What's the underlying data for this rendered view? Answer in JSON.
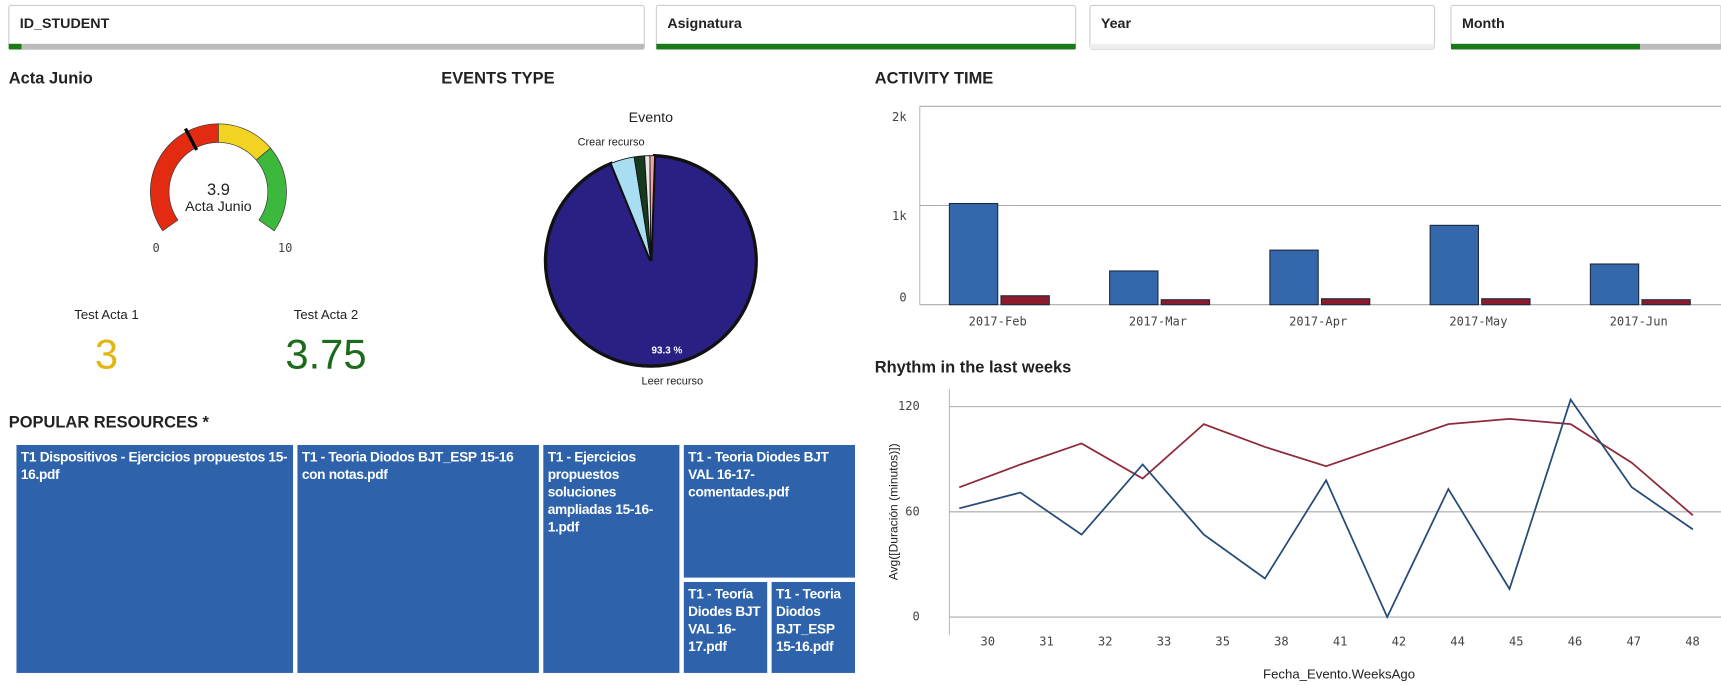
{
  "filters": [
    "ID_STUDENT",
    "Asignatura",
    "Year",
    "Month"
  ],
  "kpis": [
    {
      "label": "Test Acta 1",
      "value": 3,
      "color": "#e3b512"
    },
    {
      "label": "Test Acta 2",
      "value": 3.75,
      "color": "#1c6b1c"
    }
  ],
  "chart_data": [
    {
      "type": "gauge",
      "title": "Acta Junio",
      "label": "Acta Junio",
      "value": 3.9,
      "range": [
        0,
        10
      ],
      "bands": [
        {
          "from": 0,
          "to": 5,
          "color": "#e32b12"
        },
        {
          "from": 5,
          "to": 7,
          "color": "#f2d322"
        },
        {
          "from": 7,
          "to": 10,
          "color": "#3cb83c"
        }
      ]
    },
    {
      "type": "pie",
      "title": "EVENTS TYPE",
      "subtitle": "Evento",
      "categories": [
        "Leer recurso",
        "Crear recurso",
        null,
        null,
        null
      ],
      "values": [
        93.3,
        3.6,
        1.6,
        0.8,
        0.7
      ],
      "value_labels": [
        "93.3 %",
        null,
        null,
        null,
        null
      ],
      "colors": [
        "#2a1f82",
        "#a9def2",
        "#173a1f",
        "#e8e8e8",
        "#f2a3a3"
      ]
    },
    {
      "type": "bar",
      "title": "ACTIVITY TIME",
      "categories": [
        "2017-Feb",
        "2017-Mar",
        "2017-Apr",
        "2017-May",
        "2017-Jun"
      ],
      "series": [
        {
          "color": "#3468ab",
          "values": [
            1020,
            340,
            550,
            800,
            410
          ]
        },
        {
          "color": "#8c1c2c",
          "values": [
            90,
            50,
            60,
            60,
            50
          ]
        }
      ],
      "ylim": [
        0,
        2000
      ],
      "yticks": [
        0,
        {
          "value": 1000,
          "label": "1k"
        },
        {
          "value": 2000,
          "label": "2k"
        }
      ],
      "grid": true
    },
    {
      "type": "line",
      "title": "Rhythm in the last weeks",
      "x_label": "Fecha_Evento.WeeksAgo",
      "y_label": "Avg([Duración (minutos)])",
      "categories": [
        "30",
        "31",
        "32",
        "33",
        "35",
        "38",
        "41",
        "42",
        "44",
        "45",
        "46",
        "47",
        "48"
      ],
      "series": [
        {
          "color": "#8e2b3b",
          "values": [
            74,
            87,
            99,
            79,
            110,
            97,
            86,
            98,
            110,
            113,
            110,
            88,
            58
          ]
        },
        {
          "color": "#264b78",
          "values": [
            62,
            71,
            47,
            87,
            47,
            22,
            78,
            0,
            73,
            16,
            124,
            74,
            50
          ]
        }
      ],
      "ylim": [
        -10,
        130
      ],
      "yticks": [
        0,
        60,
        120
      ],
      "grid": true
    }
  ],
  "resources": {
    "title": "POPULAR RESOURCES *",
    "items": [
      "T1 Dispositivos - Ejercicios propuestos 15-16.pdf",
      "T1 - Teoria Diodos BJT_ESP 15-16 con notas.pdf",
      "T1 - Ejercicios propuestos soluciones ampliadas 15-16-1.pdf",
      "T1 - Teoria Diodes BJT VAL 16-17-comentades.pdf",
      "T1 - Teoría Diodes BJT VAL 16-17.pdf",
      "T1 - Teoria Diodos BJT_ESP 15-16.pdf"
    ]
  }
}
